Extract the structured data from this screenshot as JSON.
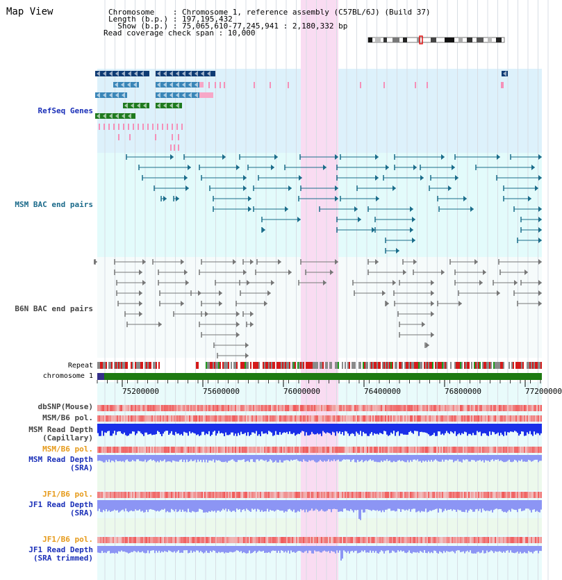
{
  "header": {
    "title": "Map View",
    "chromosome_line": "Chromosome    : Chromosome 1, reference assembly (C57BL/6J) (Build 37)",
    "length_line": "Length (b.p.) : 197,195,432",
    "show_line": "  Show (b.p.) : 75,065,610-77,245,941 : 2,180,332 bp",
    "span_line": "Read coverage check span : 10,000"
  },
  "tracks": {
    "refseq": "RefSeq Genes",
    "msm_bac": "MSM BAC end pairs",
    "b6n_bac": "B6N BAC end pairs",
    "repeat": "Repeat",
    "chromosome": "chromosome 1",
    "dbsnp": "dbSNP(Mouse)",
    "msm_b6_pol": "MSM/B6 pol.",
    "msm_depth_cap_1": "MSM Read Depth",
    "msm_depth_cap_2": "(Capillary)",
    "msm_b6_pol_sra": "MSM/B6 pol.",
    "msm_depth_sra_1": "MSM Read Depth",
    "msm_depth_sra_2": "(SRA)",
    "jf1_b6_pol": "JF1/B6 pol.",
    "jf1_depth_sra_1": "JF1 Read Depth",
    "jf1_depth_sra_2": "(SRA)",
    "jf1_b6_pol_trim": "JF1/B6 pol.",
    "jf1_depth_trim_1": "JF1 Read Depth",
    "jf1_depth_trim_2": "(SRA trimmed)"
  },
  "axis": {
    "ticks": [
      "75200000",
      "75600000",
      "76000000",
      "76400000",
      "76800000",
      "77200000"
    ]
  },
  "colors": {
    "refseq_bg": "#ddf1fb",
    "bac_bg": "#e3fbfb",
    "highlight": "#f9dcf2",
    "chromosome_bar": "#1f7a12",
    "snp": "#f08888",
    "depth_dark": "#1a2fe8",
    "depth_light": "#8c95f4"
  }
}
